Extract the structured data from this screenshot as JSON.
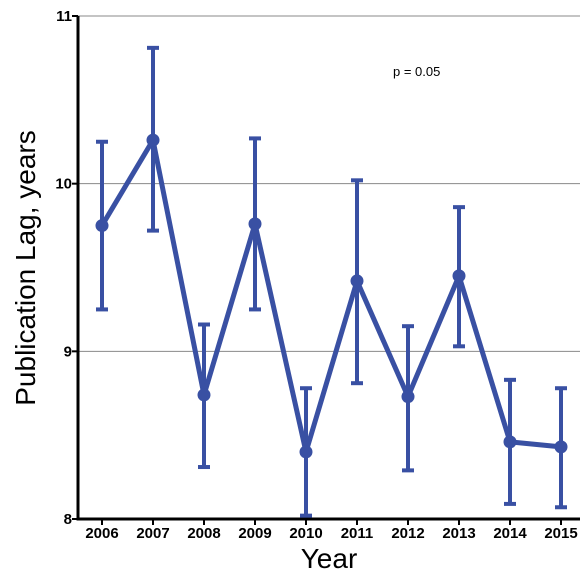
{
  "chart_data": {
    "type": "line",
    "title": "",
    "xlabel": "Year",
    "ylabel": "Publication Lag, years",
    "annotation": "p = 0.05",
    "ylim": [
      8,
      11
    ],
    "yticks": [
      "8",
      "9",
      "10",
      "11"
    ],
    "grid": "horizontal",
    "x": [
      "2006",
      "2007",
      "2008",
      "2009",
      "2010",
      "2011",
      "2012",
      "2013",
      "2014",
      "2015"
    ],
    "series": [
      {
        "values": [
          9.75,
          10.26,
          8.74,
          9.76,
          8.4,
          9.42,
          8.73,
          9.45,
          8.46,
          8.43
        ],
        "err_low": [
          9.25,
          9.72,
          8.31,
          9.25,
          8.02,
          8.81,
          8.29,
          9.03,
          8.09,
          8.07
        ],
        "err_high": [
          10.25,
          10.81,
          9.16,
          10.27,
          8.78,
          10.02,
          9.15,
          9.86,
          8.83,
          8.78
        ]
      }
    ],
    "color": "#3950a3"
  }
}
